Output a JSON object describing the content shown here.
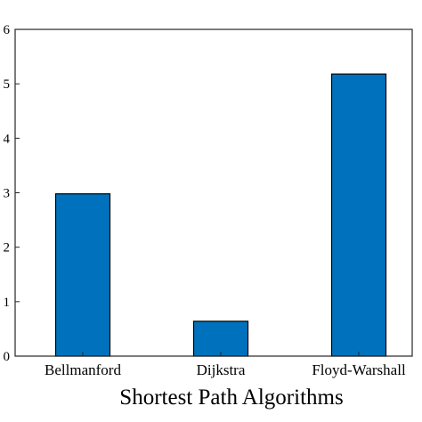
{
  "chart_data": {
    "type": "bar",
    "categories": [
      "Bellmanford",
      "Dijkstra",
      "Floyd-Warshall"
    ],
    "values": [
      2.98,
      0.64,
      5.18
    ],
    "ylim": [
      0,
      6
    ],
    "y_ticks": [
      0,
      1,
      2,
      3,
      4,
      5,
      6
    ],
    "xlabel": "Shortest Path Algorithms",
    "ylabel": "",
    "title": "",
    "bar_color": "#0072BD",
    "bar_edge_color": "#000000",
    "grid": false,
    "legend": "none"
  }
}
